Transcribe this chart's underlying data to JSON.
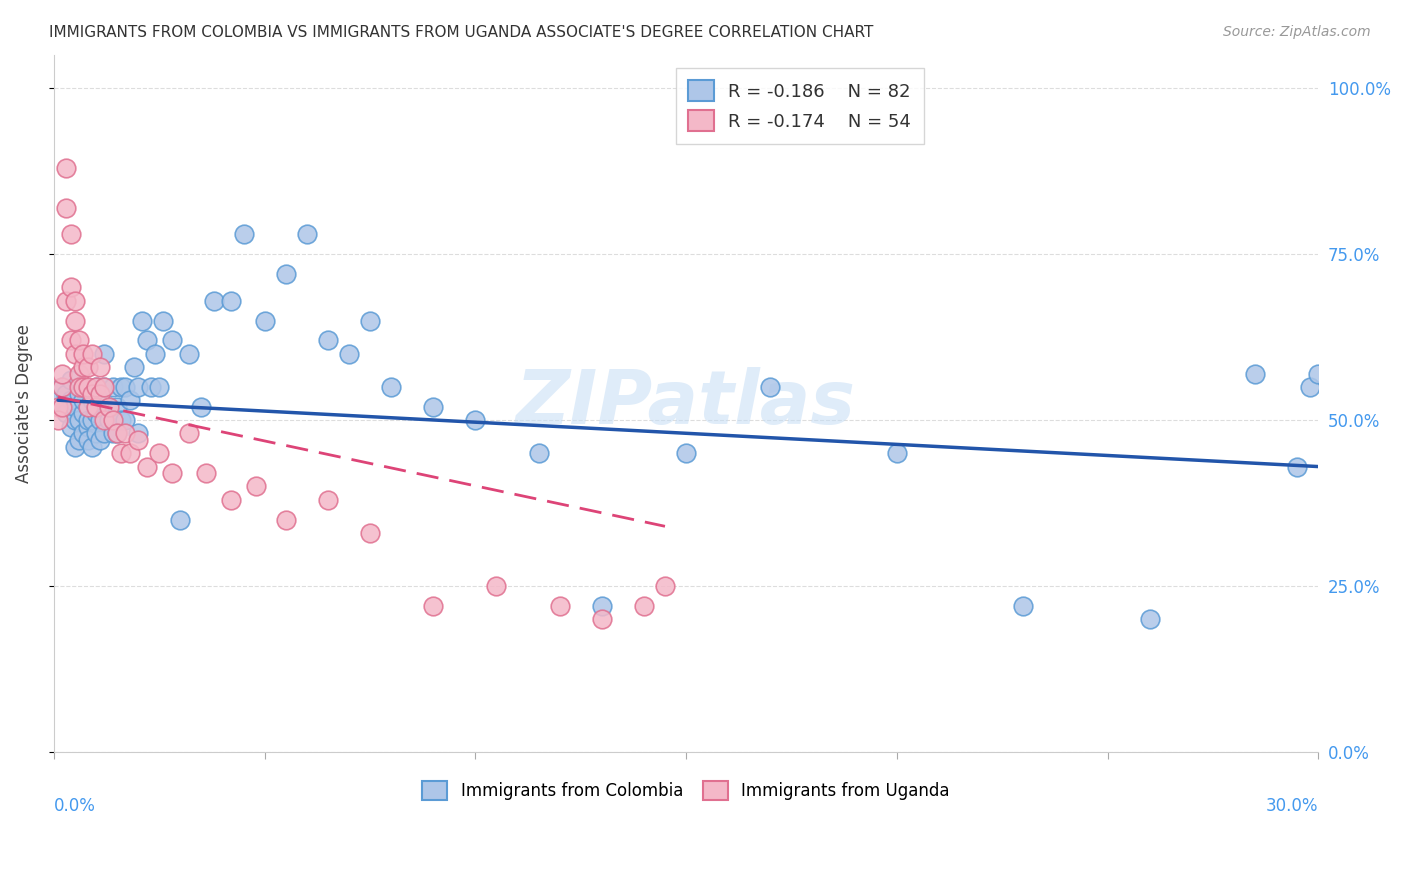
{
  "title": "IMMIGRANTS FROM COLOMBIA VS IMMIGRANTS FROM UGANDA ASSOCIATE'S DEGREE CORRELATION CHART",
  "source": "Source: ZipAtlas.com",
  "ylabel": "Associate's Degree",
  "legend_r1": "-0.186",
  "legend_n1": "82",
  "legend_r2": "-0.174",
  "legend_n2": "54",
  "colombia_color": "#aec6e8",
  "uganda_color": "#f4b8c8",
  "colombia_edge": "#5b9bd5",
  "uganda_edge": "#e07090",
  "trendline_colombia": "#2255aa",
  "trendline_uganda": "#dd4477",
  "watermark": "ZIPatlas",
  "colombia_x": [
    0.001,
    0.002,
    0.002,
    0.003,
    0.003,
    0.004,
    0.004,
    0.004,
    0.005,
    0.005,
    0.005,
    0.006,
    0.006,
    0.006,
    0.007,
    0.007,
    0.007,
    0.007,
    0.008,
    0.008,
    0.008,
    0.008,
    0.009,
    0.009,
    0.009,
    0.01,
    0.01,
    0.01,
    0.01,
    0.011,
    0.011,
    0.011,
    0.012,
    0.012,
    0.012,
    0.013,
    0.013,
    0.014,
    0.014,
    0.015,
    0.015,
    0.016,
    0.016,
    0.017,
    0.017,
    0.018,
    0.019,
    0.02,
    0.02,
    0.021,
    0.022,
    0.023,
    0.024,
    0.025,
    0.026,
    0.028,
    0.03,
    0.032,
    0.035,
    0.038,
    0.042,
    0.045,
    0.05,
    0.055,
    0.06,
    0.065,
    0.07,
    0.075,
    0.08,
    0.09,
    0.1,
    0.115,
    0.13,
    0.15,
    0.17,
    0.2,
    0.23,
    0.26,
    0.285,
    0.295,
    0.298,
    0.3
  ],
  "colombia_y": [
    0.53,
    0.52,
    0.55,
    0.54,
    0.51,
    0.53,
    0.49,
    0.56,
    0.5,
    0.52,
    0.46,
    0.5,
    0.47,
    0.54,
    0.51,
    0.48,
    0.53,
    0.55,
    0.49,
    0.52,
    0.47,
    0.5,
    0.5,
    0.53,
    0.46,
    0.51,
    0.48,
    0.52,
    0.55,
    0.5,
    0.47,
    0.53,
    0.6,
    0.55,
    0.48,
    0.52,
    0.5,
    0.55,
    0.48,
    0.52,
    0.48,
    0.55,
    0.5,
    0.55,
    0.5,
    0.53,
    0.58,
    0.55,
    0.48,
    0.65,
    0.62,
    0.55,
    0.6,
    0.55,
    0.65,
    0.62,
    0.35,
    0.6,
    0.52,
    0.68,
    0.68,
    0.78,
    0.65,
    0.72,
    0.78,
    0.62,
    0.6,
    0.65,
    0.55,
    0.52,
    0.5,
    0.45,
    0.22,
    0.45,
    0.55,
    0.45,
    0.22,
    0.2,
    0.57,
    0.43,
    0.55,
    0.57
  ],
  "uganda_x": [
    0.001,
    0.001,
    0.002,
    0.002,
    0.002,
    0.003,
    0.003,
    0.003,
    0.004,
    0.004,
    0.004,
    0.005,
    0.005,
    0.005,
    0.006,
    0.006,
    0.006,
    0.007,
    0.007,
    0.007,
    0.008,
    0.008,
    0.008,
    0.009,
    0.009,
    0.01,
    0.01,
    0.011,
    0.011,
    0.012,
    0.012,
    0.013,
    0.014,
    0.015,
    0.016,
    0.017,
    0.018,
    0.02,
    0.022,
    0.025,
    0.028,
    0.032,
    0.036,
    0.042,
    0.048,
    0.055,
    0.065,
    0.075,
    0.09,
    0.105,
    0.12,
    0.13,
    0.14,
    0.145
  ],
  "uganda_y": [
    0.52,
    0.5,
    0.55,
    0.57,
    0.52,
    0.88,
    0.82,
    0.68,
    0.78,
    0.7,
    0.62,
    0.65,
    0.6,
    0.68,
    0.62,
    0.57,
    0.55,
    0.58,
    0.55,
    0.6,
    0.52,
    0.55,
    0.58,
    0.54,
    0.6,
    0.55,
    0.52,
    0.54,
    0.58,
    0.55,
    0.5,
    0.52,
    0.5,
    0.48,
    0.45,
    0.48,
    0.45,
    0.47,
    0.43,
    0.45,
    0.42,
    0.48,
    0.42,
    0.38,
    0.4,
    0.35,
    0.38,
    0.33,
    0.22,
    0.25,
    0.22,
    0.2,
    0.22,
    0.25
  ],
  "xlim": [
    0.0,
    0.3
  ],
  "ylim": [
    0.0,
    1.05
  ],
  "yticks": [
    0.0,
    0.25,
    0.5,
    0.75,
    1.0
  ],
  "xtick_positions": [
    0.0,
    0.05,
    0.1,
    0.15,
    0.2,
    0.25,
    0.3
  ],
  "grid_color": "#dddddd",
  "background_color": "#ffffff",
  "title_color": "#333333",
  "axis_label_color": "#444444",
  "right_tick_color": "#4499ee",
  "bottom_tick_color": "#4499ee"
}
